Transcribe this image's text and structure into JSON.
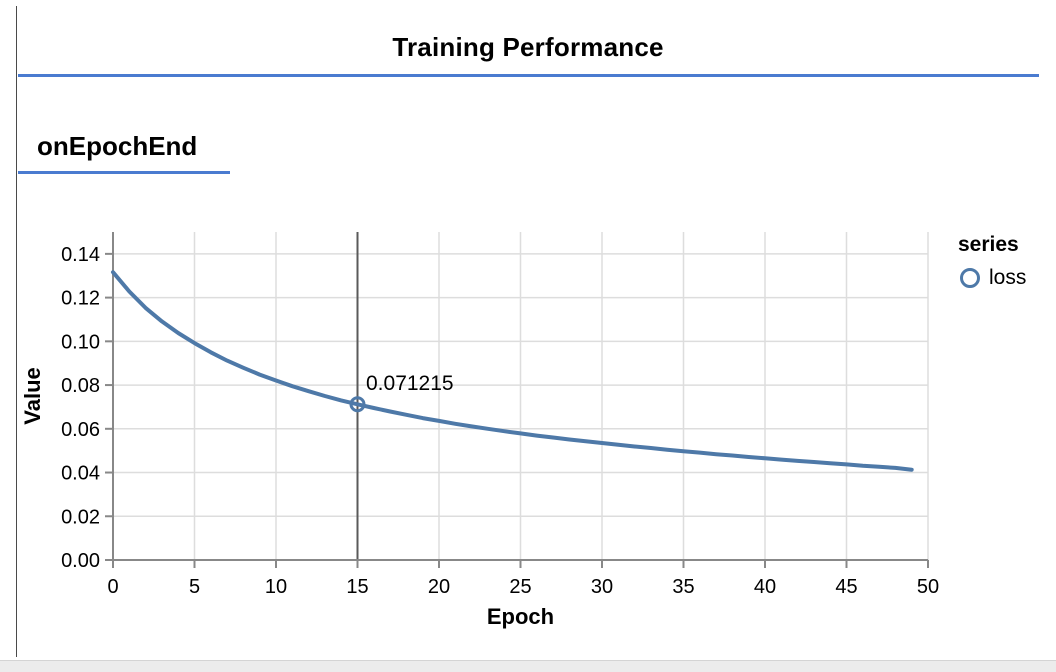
{
  "page": {
    "title": "Training Performance",
    "section_label": "onEpochEnd",
    "accent_color": "#4a7bd0"
  },
  "legend": {
    "title": "series",
    "items": [
      {
        "label": "loss",
        "color": "#4e79a8",
        "shape": "circle"
      }
    ]
  },
  "chart_data": {
    "type": "line",
    "xlabel": "Epoch",
    "ylabel": "Value",
    "xlim": [
      0,
      50
    ],
    "ylim": [
      0,
      0.15
    ],
    "x_ticks": [
      0,
      5,
      10,
      15,
      20,
      25,
      30,
      35,
      40,
      45,
      50
    ],
    "y_ticks": [
      0.0,
      0.02,
      0.04,
      0.06,
      0.08,
      0.1,
      0.12,
      0.14
    ],
    "grid": true,
    "colors": {
      "line": "#4e79a8",
      "grid": "#dddddd",
      "axis": "#888888",
      "crosshair": "#5a5a5a"
    },
    "series": [
      {
        "name": "loss",
        "color": "#4e79a8",
        "x": [
          0,
          1,
          2,
          3,
          4,
          5,
          6,
          7,
          8,
          9,
          10,
          11,
          12,
          13,
          14,
          15,
          16,
          17,
          18,
          19,
          20,
          21,
          22,
          23,
          24,
          25,
          26,
          27,
          28,
          29,
          30,
          31,
          32,
          33,
          34,
          35,
          36,
          37,
          38,
          39,
          40,
          41,
          42,
          43,
          44,
          45,
          46,
          47,
          48,
          49
        ],
        "values": [
          0.1316,
          0.1228,
          0.1153,
          0.1091,
          0.1038,
          0.0992,
          0.095,
          0.0912,
          0.0879,
          0.0848,
          0.0821,
          0.0795,
          0.0772,
          0.075,
          0.073,
          0.071215,
          0.0695,
          0.0679,
          0.0664,
          0.0649,
          0.0636,
          0.0623,
          0.0611,
          0.06,
          0.0589,
          0.0579,
          0.0569,
          0.056,
          0.0551,
          0.0543,
          0.0535,
          0.0527,
          0.0519,
          0.0512,
          0.0504,
          0.0497,
          0.0491,
          0.0484,
          0.0478,
          0.0471,
          0.0465,
          0.0459,
          0.0453,
          0.0448,
          0.0442,
          0.0437,
          0.0431,
          0.0426,
          0.0421,
          0.0413
        ]
      }
    ],
    "highlight": {
      "x": 15,
      "y": 0.071215,
      "label": "0.071215"
    },
    "legend_position": "right"
  }
}
